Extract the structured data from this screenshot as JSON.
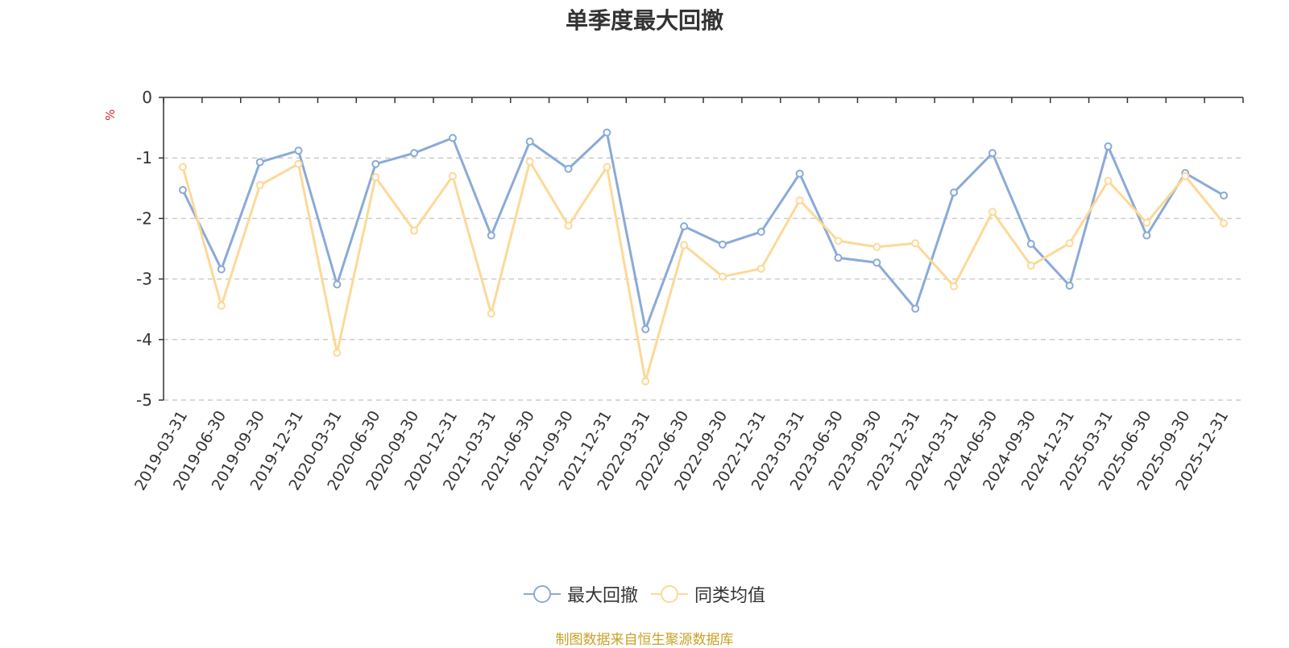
{
  "title": "单季度最大回撤",
  "unit": "%",
  "source": "制图数据来自恒生聚源数据库",
  "colors": {
    "series1": "#8aaad8",
    "series2": "#fcd997"
  },
  "chart_data": {
    "type": "line",
    "title": "单季度最大回撤",
    "ylabel": "%",
    "xlabel": "",
    "ylim": [
      -5,
      0
    ],
    "yticks": [
      "0",
      "-1",
      "-2",
      "-3",
      "-4",
      "-5"
    ],
    "grid": true,
    "legend_position": "bottom",
    "categories": [
      "2019-03-31",
      "2019-06-30",
      "2019-09-30",
      "2019-12-31",
      "2020-03-31",
      "2020-06-30",
      "2020-09-30",
      "2020-12-31",
      "2021-03-31",
      "2021-06-30",
      "2021-09-30",
      "2021-12-31",
      "2022-03-31",
      "2022-06-30",
      "2022-09-30",
      "2022-12-31",
      "2023-03-31",
      "2023-06-30",
      "2023-09-30",
      "2023-12-31",
      "2024-03-31",
      "2024-06-30",
      "2024-09-30",
      "2024-12-31",
      "2025-03-31",
      "2025-06-30",
      "2025-09-30",
      "2025-12-31"
    ],
    "series": [
      {
        "name": "最大回撤",
        "values": [
          -1.53,
          -2.84,
          -1.07,
          -0.88,
          -3.09,
          -1.1,
          -0.92,
          -0.67,
          -2.28,
          -0.73,
          -1.18,
          -0.58,
          -3.83,
          -2.13,
          -2.43,
          -2.22,
          -1.26,
          -2.65,
          -2.73,
          -3.49,
          -1.57,
          -0.92,
          -2.42,
          -3.11,
          -0.81,
          -2.28,
          -1.25,
          -1.62
        ]
      },
      {
        "name": "同类均值",
        "values": [
          -1.15,
          -3.44,
          -1.45,
          -1.1,
          -4.22,
          -1.32,
          -2.2,
          -1.3,
          -3.57,
          -1.06,
          -2.12,
          -1.15,
          -4.69,
          -2.44,
          -2.96,
          -2.83,
          -1.7,
          -2.37,
          -2.47,
          -2.41,
          -3.12,
          -1.89,
          -2.78,
          -2.41,
          -1.38,
          -2.07,
          -1.3,
          -2.08
        ]
      }
    ]
  }
}
